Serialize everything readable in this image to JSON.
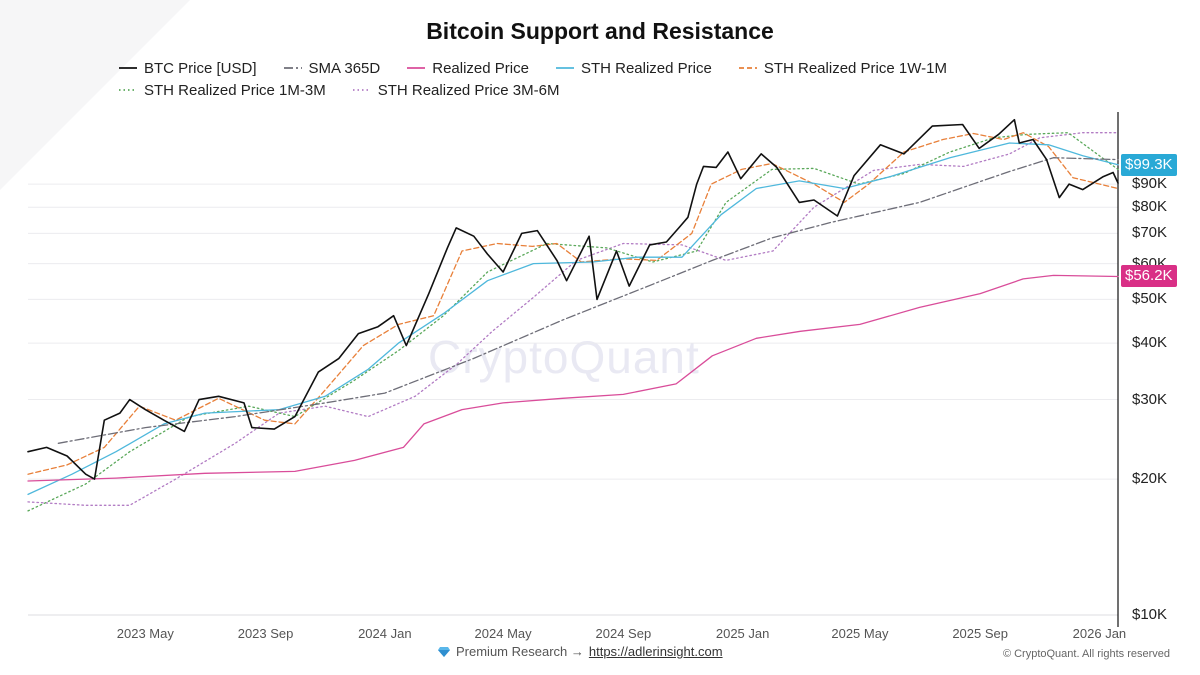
{
  "chart_data": {
    "type": "line",
    "title": "Bitcoin Support and Resistance",
    "y_scale": "log",
    "ylim": [
      10000,
      130000
    ],
    "xlim": [
      "2023-01-01",
      "2026-01-20"
    ],
    "grid": true,
    "legend_position": "top",
    "y_ticks": [
      {
        "value": 10000,
        "label": "$10K"
      },
      {
        "value": 20000,
        "label": "$20K"
      },
      {
        "value": 30000,
        "label": "$30K"
      },
      {
        "value": 40000,
        "label": "$40K"
      },
      {
        "value": 50000,
        "label": "$50K"
      },
      {
        "value": 60000,
        "label": "$60K"
      },
      {
        "value": 70000,
        "label": "$70K"
      },
      {
        "value": 80000,
        "label": "$80K"
      },
      {
        "value": 90000,
        "label": "$90K"
      }
    ],
    "x_ticks": [
      {
        "date": "2023-05-01",
        "label": "2023 May"
      },
      {
        "date": "2023-09-01",
        "label": "2023 Sep"
      },
      {
        "date": "2024-01-01",
        "label": "2024 Jan"
      },
      {
        "date": "2024-05-01",
        "label": "2024 May"
      },
      {
        "date": "2024-09-01",
        "label": "2024 Sep"
      },
      {
        "date": "2025-01-01",
        "label": "2025 Jan"
      },
      {
        "date": "2025-05-01",
        "label": "2025 May"
      },
      {
        "date": "2025-09-01",
        "label": "2025 Sep"
      },
      {
        "date": "2026-01-01",
        "label": "2026 Jan"
      }
    ],
    "current_value_badges": [
      {
        "label": "$99.3K",
        "value": 99300,
        "color": "#29a9d6"
      },
      {
        "label": "$56.2K",
        "value": 56200,
        "color": "#d92f86"
      }
    ],
    "series": [
      {
        "name": "BTC Price [USD]",
        "color": "#111111",
        "style": "solid",
        "points": [
          [
            "2023-01-01",
            23000
          ],
          [
            "2023-01-20",
            23500
          ],
          [
            "2023-02-10",
            22500
          ],
          [
            "2023-03-01",
            20500
          ],
          [
            "2023-03-10",
            20000
          ],
          [
            "2023-03-20",
            27000
          ],
          [
            "2023-04-05",
            28000
          ],
          [
            "2023-04-15",
            30000
          ],
          [
            "2023-05-01",
            28500
          ],
          [
            "2023-05-20",
            27000
          ],
          [
            "2023-06-10",
            25500
          ],
          [
            "2023-06-25",
            30000
          ],
          [
            "2023-07-15",
            30500
          ],
          [
            "2023-08-10",
            29500
          ],
          [
            "2023-08-18",
            26000
          ],
          [
            "2023-09-10",
            25800
          ],
          [
            "2023-10-01",
            27500
          ],
          [
            "2023-10-25",
            34500
          ],
          [
            "2023-11-15",
            37000
          ],
          [
            "2023-12-05",
            42000
          ],
          [
            "2023-12-25",
            43500
          ],
          [
            "2024-01-10",
            46000
          ],
          [
            "2024-01-23",
            39500
          ],
          [
            "2024-02-15",
            51500
          ],
          [
            "2024-03-05",
            65000
          ],
          [
            "2024-03-14",
            72000
          ],
          [
            "2024-04-01",
            69000
          ],
          [
            "2024-04-15",
            63000
          ],
          [
            "2024-05-01",
            57500
          ],
          [
            "2024-05-20",
            70000
          ],
          [
            "2024-06-05",
            71000
          ],
          [
            "2024-06-25",
            61000
          ],
          [
            "2024-07-05",
            55000
          ],
          [
            "2024-07-28",
            69000
          ],
          [
            "2024-08-05",
            50000
          ],
          [
            "2024-08-25",
            64000
          ],
          [
            "2024-09-07",
            53500
          ],
          [
            "2024-09-28",
            66000
          ],
          [
            "2024-10-15",
            67000
          ],
          [
            "2024-10-29",
            72500
          ],
          [
            "2024-11-06",
            76000
          ],
          [
            "2024-11-15",
            90000
          ],
          [
            "2024-11-22",
            98500
          ],
          [
            "2024-12-05",
            98000
          ],
          [
            "2024-12-17",
            106000
          ],
          [
            "2024-12-30",
            92500
          ],
          [
            "2025-01-20",
            105000
          ],
          [
            "2025-02-05",
            98000
          ],
          [
            "2025-02-28",
            82000
          ],
          [
            "2025-03-15",
            83000
          ],
          [
            "2025-04-08",
            76500
          ],
          [
            "2025-04-25",
            94000
          ],
          [
            "2025-05-22",
            110000
          ],
          [
            "2025-06-15",
            105000
          ],
          [
            "2025-07-14",
            121000
          ],
          [
            "2025-08-14",
            122000
          ],
          [
            "2025-08-31",
            108000
          ],
          [
            "2025-09-20",
            116000
          ],
          [
            "2025-10-06",
            125000
          ],
          [
            "2025-10-11",
            111000
          ],
          [
            "2025-10-25",
            113000
          ],
          [
            "2025-11-08",
            102000
          ],
          [
            "2025-11-21",
            84000
          ],
          [
            "2025-12-01",
            90000
          ],
          [
            "2025-12-15",
            87500
          ],
          [
            "2026-01-05",
            93500
          ],
          [
            "2026-01-15",
            95500
          ],
          [
            "2026-01-20",
            90500
          ]
        ]
      },
      {
        "name": "SMA 365D",
        "color": "#6e6e78",
        "style": "dashdot",
        "points": [
          [
            "2023-02-01",
            24000
          ],
          [
            "2023-05-01",
            26000
          ],
          [
            "2023-08-01",
            27500
          ],
          [
            "2023-11-01",
            29500
          ],
          [
            "2024-01-01",
            31000
          ],
          [
            "2024-04-01",
            37000
          ],
          [
            "2024-07-01",
            45000
          ],
          [
            "2024-10-01",
            54000
          ],
          [
            "2024-12-01",
            61000
          ],
          [
            "2025-02-01",
            68500
          ],
          [
            "2025-04-01",
            74000
          ],
          [
            "2025-07-01",
            82000
          ],
          [
            "2025-10-01",
            96000
          ],
          [
            "2025-11-15",
            103000
          ],
          [
            "2026-01-20",
            102000
          ]
        ]
      },
      {
        "name": "Realized Price",
        "color": "#d94d9a",
        "style": "solid",
        "points": [
          [
            "2023-01-01",
            19800
          ],
          [
            "2023-04-01",
            20100
          ],
          [
            "2023-07-01",
            20600
          ],
          [
            "2023-10-01",
            20800
          ],
          [
            "2023-12-01",
            22000
          ],
          [
            "2024-01-20",
            23500
          ],
          [
            "2024-02-10",
            26500
          ],
          [
            "2024-03-20",
            28500
          ],
          [
            "2024-05-01",
            29500
          ],
          [
            "2024-07-01",
            30200
          ],
          [
            "2024-09-01",
            30800
          ],
          [
            "2024-10-25",
            32500
          ],
          [
            "2024-12-01",
            37500
          ],
          [
            "2025-01-15",
            41000
          ],
          [
            "2025-03-01",
            42500
          ],
          [
            "2025-05-01",
            44000
          ],
          [
            "2025-07-01",
            48000
          ],
          [
            "2025-09-01",
            51500
          ],
          [
            "2025-10-15",
            55500
          ],
          [
            "2025-11-15",
            56500
          ],
          [
            "2026-01-20",
            56200
          ]
        ]
      },
      {
        "name": "STH Realized Price",
        "color": "#4fb8dc",
        "style": "solid",
        "points": [
          [
            "2023-01-01",
            18500
          ],
          [
            "2023-02-15",
            20500
          ],
          [
            "2023-04-01",
            23000
          ],
          [
            "2023-05-20",
            26500
          ],
          [
            "2023-07-01",
            28000
          ],
          [
            "2023-09-15",
            28500
          ],
          [
            "2023-11-01",
            30500
          ],
          [
            "2023-12-15",
            35000
          ],
          [
            "2024-01-15",
            40000
          ],
          [
            "2024-03-01",
            46500
          ],
          [
            "2024-04-15",
            55000
          ],
          [
            "2024-06-01",
            60000
          ],
          [
            "2024-08-01",
            60500
          ],
          [
            "2024-09-15",
            62000
          ],
          [
            "2024-10-31",
            62000
          ],
          [
            "2024-12-10",
            77000
          ],
          [
            "2025-01-15",
            88000
          ],
          [
            "2025-02-28",
            91500
          ],
          [
            "2025-04-15",
            88000
          ],
          [
            "2025-06-01",
            93500
          ],
          [
            "2025-08-01",
            103000
          ],
          [
            "2025-10-01",
            111000
          ],
          [
            "2025-11-10",
            110000
          ],
          [
            "2025-12-15",
            104000
          ],
          [
            "2026-01-20",
            99300
          ]
        ]
      },
      {
        "name": "STH Realized Price 1W-1M",
        "color": "#e8803a",
        "style": "dashed",
        "points": [
          [
            "2023-01-01",
            20500
          ],
          [
            "2023-02-10",
            21500
          ],
          [
            "2023-03-20",
            23500
          ],
          [
            "2023-04-25",
            29000
          ],
          [
            "2023-06-01",
            27000
          ],
          [
            "2023-07-15",
            30200
          ],
          [
            "2023-08-31",
            27000
          ],
          [
            "2023-10-01",
            26500
          ],
          [
            "2023-11-01",
            31500
          ],
          [
            "2023-12-10",
            39500
          ],
          [
            "2024-01-15",
            44000
          ],
          [
            "2024-02-20",
            46000
          ],
          [
            "2024-03-20",
            64000
          ],
          [
            "2024-04-25",
            66500
          ],
          [
            "2024-05-31",
            65500
          ],
          [
            "2024-06-25",
            66500
          ],
          [
            "2024-07-20",
            60500
          ],
          [
            "2024-08-31",
            61500
          ],
          [
            "2024-10-05",
            61000
          ],
          [
            "2024-11-10",
            70000
          ],
          [
            "2024-11-30",
            90000
          ],
          [
            "2024-12-31",
            97000
          ],
          [
            "2025-01-31",
            100000
          ],
          [
            "2025-03-15",
            90000
          ],
          [
            "2025-04-15",
            82000
          ],
          [
            "2025-05-10",
            90000
          ],
          [
            "2025-06-15",
            106000
          ],
          [
            "2025-07-25",
            113000
          ],
          [
            "2025-08-25",
            116500
          ],
          [
            "2025-09-25",
            113000
          ],
          [
            "2025-10-15",
            117000
          ],
          [
            "2025-11-10",
            109000
          ],
          [
            "2025-12-05",
            93000
          ],
          [
            "2026-01-20",
            88000
          ]
        ]
      },
      {
        "name": "STH Realized Price 1M-3M",
        "color": "#5aa85a",
        "style": "dotted",
        "points": [
          [
            "2023-01-01",
            17000
          ],
          [
            "2023-03-01",
            19500
          ],
          [
            "2023-04-15",
            23000
          ],
          [
            "2023-06-15",
            27500
          ],
          [
            "2023-08-15",
            29000
          ],
          [
            "2023-10-01",
            27500
          ],
          [
            "2023-11-30",
            33000
          ],
          [
            "2024-01-15",
            38500
          ],
          [
            "2024-03-01",
            46000
          ],
          [
            "2024-04-15",
            57500
          ],
          [
            "2024-06-15",
            66500
          ],
          [
            "2024-08-15",
            65000
          ],
          [
            "2024-10-01",
            60500
          ],
          [
            "2024-11-15",
            64000
          ],
          [
            "2024-12-15",
            82000
          ],
          [
            "2025-01-31",
            97000
          ],
          [
            "2025-03-15",
            97500
          ],
          [
            "2025-04-30",
            90000
          ],
          [
            "2025-06-15",
            95000
          ],
          [
            "2025-08-01",
            106000
          ],
          [
            "2025-09-15",
            114000
          ],
          [
            "2025-10-20",
            116000
          ],
          [
            "2025-11-30",
            117000
          ],
          [
            "2026-01-20",
            97000
          ]
        ]
      },
      {
        "name": "STH Realized Price 3M-6M",
        "color": "#b27cc4",
        "style": "dotted",
        "points": [
          [
            "2023-01-01",
            17800
          ],
          [
            "2023-03-01",
            17500
          ],
          [
            "2023-04-15",
            17500
          ],
          [
            "2023-06-01",
            20000
          ],
          [
            "2023-08-01",
            24000
          ],
          [
            "2023-09-15",
            28000
          ],
          [
            "2023-11-01",
            29000
          ],
          [
            "2023-12-15",
            27500
          ],
          [
            "2024-02-01",
            30500
          ],
          [
            "2024-03-15",
            36000
          ],
          [
            "2024-04-20",
            42500
          ],
          [
            "2024-06-01",
            50500
          ],
          [
            "2024-07-15",
            61000
          ],
          [
            "2024-09-01",
            66500
          ],
          [
            "2024-10-31",
            66000
          ],
          [
            "2024-12-15",
            61000
          ],
          [
            "2025-02-01",
            64000
          ],
          [
            "2025-03-15",
            80000
          ],
          [
            "2025-05-15",
            96500
          ],
          [
            "2025-07-01",
            99500
          ],
          [
            "2025-08-15",
            98500
          ],
          [
            "2025-10-01",
            105000
          ],
          [
            "2025-11-01",
            114000
          ],
          [
            "2025-12-15",
            117000
          ],
          [
            "2026-01-20",
            117000
          ]
        ]
      }
    ]
  },
  "watermark": "CryptoQuant",
  "footer": {
    "research_label": "Premium Research →",
    "research_link": "https://adlerinsight.com",
    "copyright": "© CryptoQuant. All rights reserved"
  }
}
